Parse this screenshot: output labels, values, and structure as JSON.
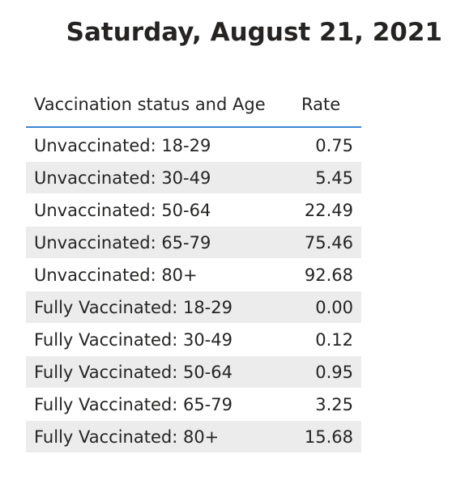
{
  "title": "Saturday, August 21, 2021",
  "table": {
    "columns": [
      "Vaccination status and Age",
      "Rate"
    ],
    "rows": [
      {
        "status": "Unvaccinated: 18-29",
        "rate": "0.75"
      },
      {
        "status": "Unvaccinated: 30-49",
        "rate": "5.45"
      },
      {
        "status": "Unvaccinated: 50-64",
        "rate": "22.49"
      },
      {
        "status": "Unvaccinated: 65-79",
        "rate": "75.46"
      },
      {
        "status": "Unvaccinated: 80+",
        "rate": "92.68"
      },
      {
        "status": "Fully Vaccinated: 18-29",
        "rate": "0.00"
      },
      {
        "status": "Fully Vaccinated: 30-49",
        "rate": "0.12"
      },
      {
        "status": "Fully Vaccinated: 50-64",
        "rate": "0.95"
      },
      {
        "status": "Fully Vaccinated: 65-79",
        "rate": "3.25"
      },
      {
        "status": "Fully Vaccinated: 80+",
        "rate": "15.68"
      }
    ]
  },
  "colors": {
    "header_rule": "#3d86d6",
    "alt_row": "#ececec",
    "text": "#252423"
  }
}
